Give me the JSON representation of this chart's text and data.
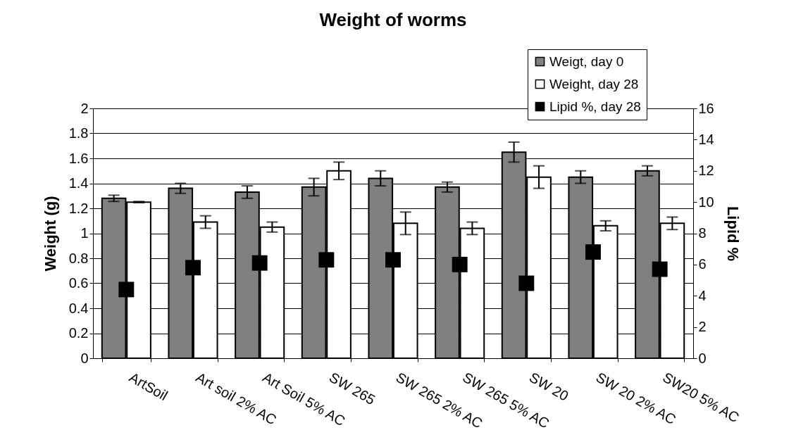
{
  "chart_data": {
    "type": "bar",
    "title": "Weight of worms",
    "ylabel": "Weight (g)",
    "y2label": "Lipid %",
    "categories": [
      "ArtSoil",
      "Art soil 2% AC",
      "Art Soil 5% AC",
      "SW 265",
      "SW 265 2% AC",
      "SW 265 5% AC",
      "SW 20",
      "SW 20 2% AC",
      "SW20 5% AC"
    ],
    "series": [
      {
        "name": "Weigt, day 0",
        "color": "#808080",
        "values": [
          1.28,
          1.36,
          1.33,
          1.37,
          1.44,
          1.37,
          1.65,
          1.45,
          1.5
        ],
        "errors": [
          0.025,
          0.04,
          0.05,
          0.07,
          0.06,
          0.04,
          0.08,
          0.05,
          0.04
        ]
      },
      {
        "name": "Weight, day 28",
        "color": "#ffffff",
        "values": [
          1.25,
          1.09,
          1.05,
          1.5,
          1.08,
          1.04,
          1.45,
          1.06,
          1.08
        ],
        "errors": [
          0.005,
          0.05,
          0.04,
          0.07,
          0.09,
          0.05,
          0.09,
          0.04,
          0.05
        ]
      },
      {
        "name": "Lipid %, day 28",
        "color": "#000000",
        "type": "scatter",
        "axis": "y2",
        "marker": "square",
        "values": [
          4.4,
          5.8,
          6.1,
          6.3,
          6.3,
          6.0,
          4.8,
          6.8,
          5.7
        ]
      }
    ],
    "ylim": [
      0,
      2
    ],
    "yticks": [
      0,
      0.2,
      0.4,
      0.6,
      0.8,
      1,
      1.2,
      1.4,
      1.6,
      1.8,
      2
    ],
    "y2lim": [
      0,
      16
    ],
    "y2ticks": [
      0,
      2,
      4,
      6,
      8,
      10,
      12,
      14,
      16
    ],
    "grid": "y",
    "legend": "top right"
  }
}
